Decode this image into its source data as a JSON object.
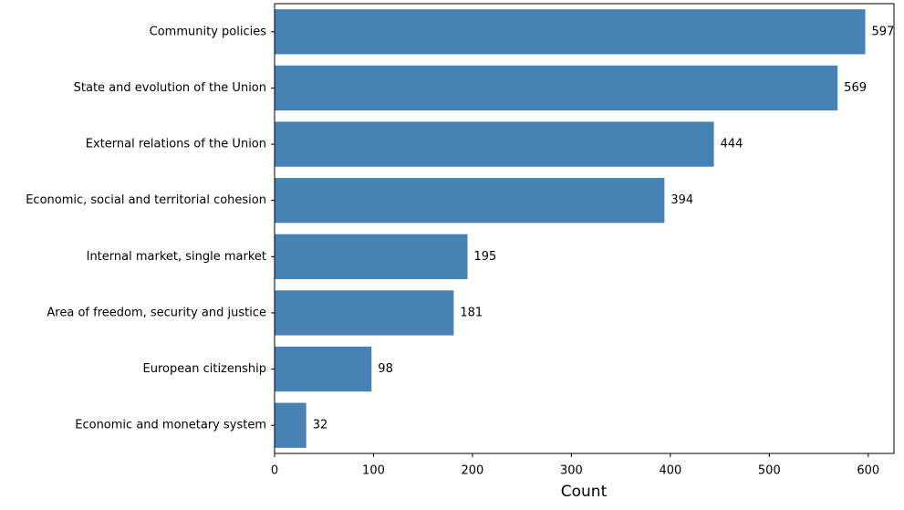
{
  "chart_data": {
    "type": "barh",
    "categories": [
      "Community policies",
      "State and evolution of the Union",
      "External relations of the Union",
      "Economic, social and territorial cohesion",
      "Internal market, single market",
      "Area of freedom, security and justice",
      "European citizenship",
      "Economic and monetary system"
    ],
    "values": [
      597,
      569,
      444,
      394,
      195,
      181,
      98,
      32
    ],
    "color": "#4682b4",
    "xlabel": "Count",
    "xlim": [
      0,
      626
    ],
    "xticks": [
      0,
      100,
      200,
      300,
      400,
      500,
      600
    ],
    "grid": false
  }
}
